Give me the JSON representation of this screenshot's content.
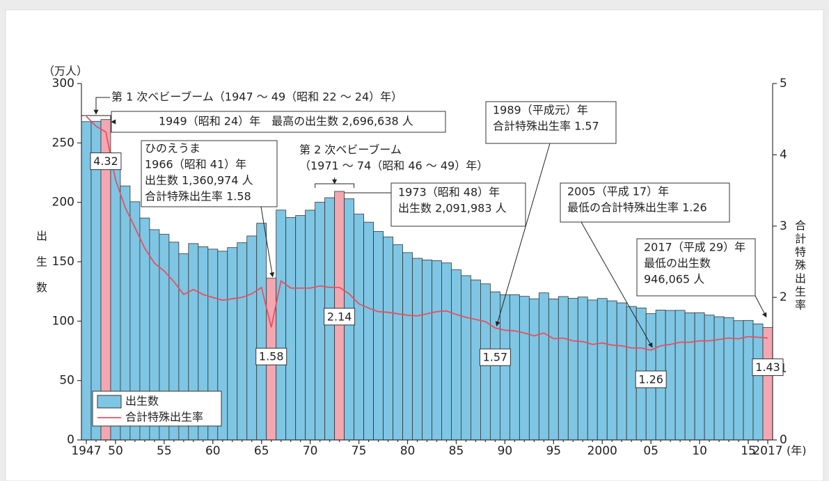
{
  "chart_data": {
    "type": "bar-line",
    "y_label_unit": "（万人）",
    "y_label": "出生数",
    "y2_label": "合計特殊出生率",
    "x_unit": "(年)",
    "x": [
      1947,
      1948,
      1949,
      1950,
      1951,
      1952,
      1953,
      1954,
      1955,
      1956,
      1957,
      1958,
      1959,
      1960,
      1961,
      1962,
      1963,
      1964,
      1965,
      1966,
      1967,
      1968,
      1969,
      1970,
      1971,
      1972,
      1973,
      1974,
      1975,
      1976,
      1977,
      1978,
      1979,
      1980,
      1981,
      1982,
      1983,
      1984,
      1985,
      1986,
      1987,
      1988,
      1989,
      1990,
      1991,
      1992,
      1993,
      1994,
      1995,
      1996,
      1997,
      1998,
      1999,
      2000,
      2001,
      2002,
      2003,
      2004,
      2005,
      2006,
      2007,
      2008,
      2009,
      2010,
      2011,
      2012,
      2013,
      2014,
      2015,
      2016,
      2017
    ],
    "xlim": [
      1946.5,
      2017.5
    ],
    "xticks": [
      1947,
      {
        "value": 1950,
        "label": "50"
      },
      {
        "value": 1955,
        "label": "55"
      },
      {
        "value": 1960,
        "label": "60"
      },
      {
        "value": 1965,
        "label": "65"
      },
      {
        "value": 1970,
        "label": "70"
      },
      {
        "value": 1975,
        "label": "75"
      },
      {
        "value": 1980,
        "label": "80"
      },
      {
        "value": 1985,
        "label": "85"
      },
      {
        "value": 1990,
        "label": "90"
      },
      {
        "value": 1995,
        "label": "95"
      },
      2000,
      {
        "value": 2005,
        "label": "05"
      },
      {
        "value": 2010,
        "label": "10"
      },
      {
        "value": 2015,
        "label": "15"
      },
      2017
    ],
    "ylim": [
      0,
      300
    ],
    "yticks": [
      0,
      50,
      100,
      150,
      200,
      250,
      300
    ],
    "y2lim": [
      0,
      5
    ],
    "y2ticks": [
      0,
      1,
      2,
      3,
      4,
      5
    ],
    "highlight": [
      1949,
      1966,
      1973,
      2017
    ],
    "highlight_color": "#f4a7b1",
    "series": [
      {
        "name": "出生数",
        "type": "bar",
        "color": "#7ec6e4",
        "values": [
          267.9,
          268.2,
          269.7,
          233.8,
          213.8,
          200.5,
          186.8,
          177.0,
          173.1,
          166.5,
          156.7,
          165.3,
          162.6,
          160.6,
          158.9,
          161.9,
          166.0,
          171.7,
          182.4,
          136.1,
          193.5,
          187.2,
          188.9,
          193.4,
          200.1,
          203.9,
          209.2,
          203.0,
          190.1,
          183.3,
          175.5,
          170.9,
          164.3,
          157.7,
          152.9,
          151.5,
          150.9,
          149.0,
          143.2,
          138.3,
          134.7,
          131.4,
          124.7,
          122.2,
          122.3,
          120.9,
          118.8,
          123.8,
          118.7,
          120.7,
          119.2,
          120.3,
          117.8,
          119.1,
          117.1,
          115.4,
          112.4,
          111.1,
          106.3,
          109.3,
          109.0,
          109.1,
          107.0,
          107.1,
          105.1,
          103.7,
          103.0,
          100.4,
          100.6,
          97.7,
          94.6
        ]
      },
      {
        "name": "合計特殊出生率",
        "type": "line",
        "axis": "y2",
        "color": "#e8505e",
        "values": [
          4.54,
          4.4,
          4.32,
          3.65,
          3.26,
          2.98,
          2.69,
          2.48,
          2.37,
          2.22,
          2.04,
          2.11,
          2.04,
          2.0,
          1.96,
          1.98,
          2.0,
          2.05,
          2.14,
          1.58,
          2.23,
          2.13,
          2.13,
          2.13,
          2.16,
          2.14,
          2.14,
          2.05,
          1.91,
          1.85,
          1.8,
          1.79,
          1.77,
          1.75,
          1.74,
          1.77,
          1.8,
          1.81,
          1.76,
          1.72,
          1.69,
          1.66,
          1.57,
          1.54,
          1.53,
          1.5,
          1.46,
          1.5,
          1.42,
          1.43,
          1.39,
          1.38,
          1.34,
          1.36,
          1.33,
          1.32,
          1.29,
          1.29,
          1.26,
          1.32,
          1.34,
          1.37,
          1.37,
          1.39,
          1.39,
          1.41,
          1.43,
          1.42,
          1.45,
          1.44,
          1.43
        ],
        "value_labels": [
          null,
          null,
          "4.32",
          null,
          null,
          null,
          null,
          null,
          null,
          null,
          null,
          null,
          null,
          null,
          null,
          null,
          null,
          null,
          null,
          "1.58",
          null,
          null,
          null,
          null,
          null,
          null,
          "2.14",
          null,
          null,
          null,
          null,
          null,
          null,
          null,
          null,
          null,
          null,
          null,
          null,
          null,
          null,
          null,
          "1.57",
          null,
          null,
          null,
          null,
          null,
          null,
          null,
          null,
          null,
          null,
          null,
          null,
          null,
          null,
          null,
          "1.26",
          null,
          null,
          null,
          null,
          null,
          null,
          null,
          null,
          null,
          null,
          null,
          "1.43"
        ]
      }
    ],
    "annotations": [
      {
        "lines": [
          "第 1 次ベビーブーム（1947 ～ 49（昭和 22 ～ 24）年）"
        ]
      },
      {
        "lines": [
          "1949（昭和 24）年　最高の出生数 2,696,638 人"
        ]
      },
      {
        "lines": [
          "ひのえうま",
          "1966（昭和 41）年",
          "出生数 1,360,974 人",
          "合計特殊出生率 1.58"
        ]
      },
      {
        "lines": [
          "第 2 次ベビーブーム",
          "（1971 ～ 74（昭和 46 ～ 49）年）"
        ]
      },
      {
        "lines": [
          "1973（昭和 48）年",
          "出生数 2,091,983 人"
        ]
      },
      {
        "lines": [
          "1989（平成元）年",
          "合計特殊出生率 1.57"
        ]
      },
      {
        "lines": [
          "2005（平成 17）年",
          "最低の合計特殊出生率 1.26"
        ]
      },
      {
        "lines": [
          "2017（平成 29）年",
          "最低の出生数",
          "946,065 人"
        ]
      }
    ]
  }
}
